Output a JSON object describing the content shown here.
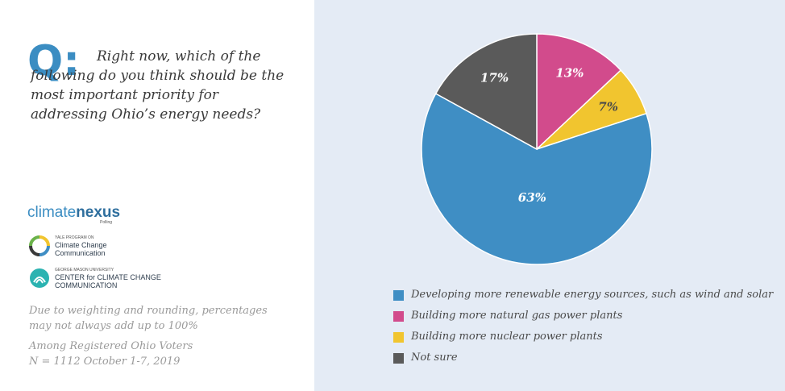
{
  "question": {
    "marker": "Q:",
    "text": "Right now, which of the following do you think should be the most important priority for addressing Ohio’s energy needs?"
  },
  "logos": {
    "climate_nexus": {
      "part1": "climate",
      "part2": "nexus",
      "sub": "Polling"
    },
    "yale": {
      "small": "YALE PROGRAM ON",
      "line1": "Climate Change",
      "line2": "Communication"
    },
    "gmu": {
      "small": "GEORGE MASON UNIVERSITY",
      "line1": "CENTER for CLIMATE CHANGE",
      "line2": "COMMUNICATION"
    }
  },
  "notes": {
    "weighting": "Due to weighting and rounding, percentages may not always add up to 100%",
    "sample_line1": "Among Registered Ohio Voters",
    "sample_line2": "N = 1112 October 1-7, 2019"
  },
  "chart_data": {
    "type": "pie",
    "start": "12 o'clock, clockwise",
    "slices": [
      {
        "label": "Building more natural gas power plants",
        "value": 13,
        "display": "13%",
        "color": "#d24b8c",
        "label_color": "#ffffff"
      },
      {
        "label": "Building more nuclear power plants",
        "value": 7,
        "display": "7%",
        "color": "#f1c52f",
        "label_color": "#4a4a4a"
      },
      {
        "label": "Developing more renewable energy sources, such as wind and solar",
        "value": 63,
        "display": "63%",
        "color": "#3f8ec4",
        "label_color": "#ffffff"
      },
      {
        "label": "Not sure",
        "value": 17,
        "display": "17%",
        "color": "#5a5a5a",
        "label_color": "#ffffff"
      }
    ],
    "legend": [
      {
        "label": "Developing more renewable energy sources, such as wind and solar",
        "color": "#3f8ec4"
      },
      {
        "label": "Building more natural gas power plants",
        "color": "#d24b8c"
      },
      {
        "label": "Building more nuclear power plants",
        "color": "#f1c52f"
      },
      {
        "label": "Not sure",
        "color": "#5a5a5a"
      }
    ],
    "legend_position": "bottom"
  }
}
